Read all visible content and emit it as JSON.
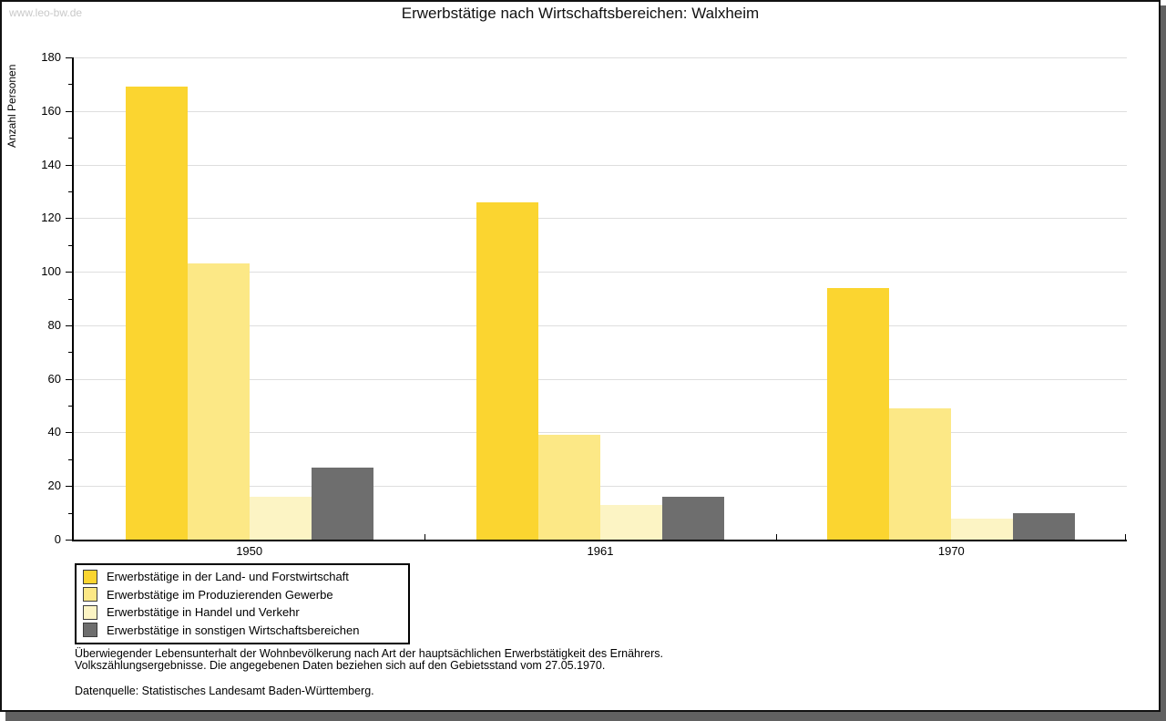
{
  "watermark": "www.leo-bw.de",
  "title": "Erwerbstätige nach Wirtschaftsbereichen: Walxheim",
  "chart_data": {
    "type": "bar",
    "title": "Erwerbstätige nach Wirtschaftsbereichen: Walxheim",
    "xlabel": "",
    "ylabel": "Anzahl Personen",
    "ylim": [
      0,
      180
    ],
    "ytick_step": 20,
    "yticks": [
      0,
      20,
      40,
      60,
      80,
      100,
      120,
      140,
      160,
      180
    ],
    "grid": true,
    "legend_position": "bottom-left",
    "categories": [
      "1950",
      "1961",
      "1970"
    ],
    "series": [
      {
        "name": "Erwerbstätige in der Land- und Forstwirtschaft",
        "color": "#FBD530",
        "values": [
          169,
          126,
          94
        ]
      },
      {
        "name": "Erwerbstätige im Produzierenden Gewerbe",
        "color": "#FCE886",
        "values": [
          103,
          39,
          49
        ]
      },
      {
        "name": "Erwerbstätige in Handel und Verkehr",
        "color": "#FCF4C4",
        "values": [
          16,
          13,
          8
        ]
      },
      {
        "name": "Erwerbstätige in sonstigen Wirtschaftsbereichen",
        "color": "#6E6E6E",
        "values": [
          27,
          16,
          10
        ]
      }
    ]
  },
  "footer": {
    "line1": "Überwiegender Lebensunterhalt der Wohnbevölkerung nach Art der hauptsächlichen Erwerbstätigkeit des Ernährers.",
    "line2": "Volkszählungsergebnisse. Die angegebenen Daten beziehen sich auf den Gebietsstand vom 27.05.1970.",
    "source": "Datenquelle: Statistisches Landesamt Baden-Württemberg."
  }
}
